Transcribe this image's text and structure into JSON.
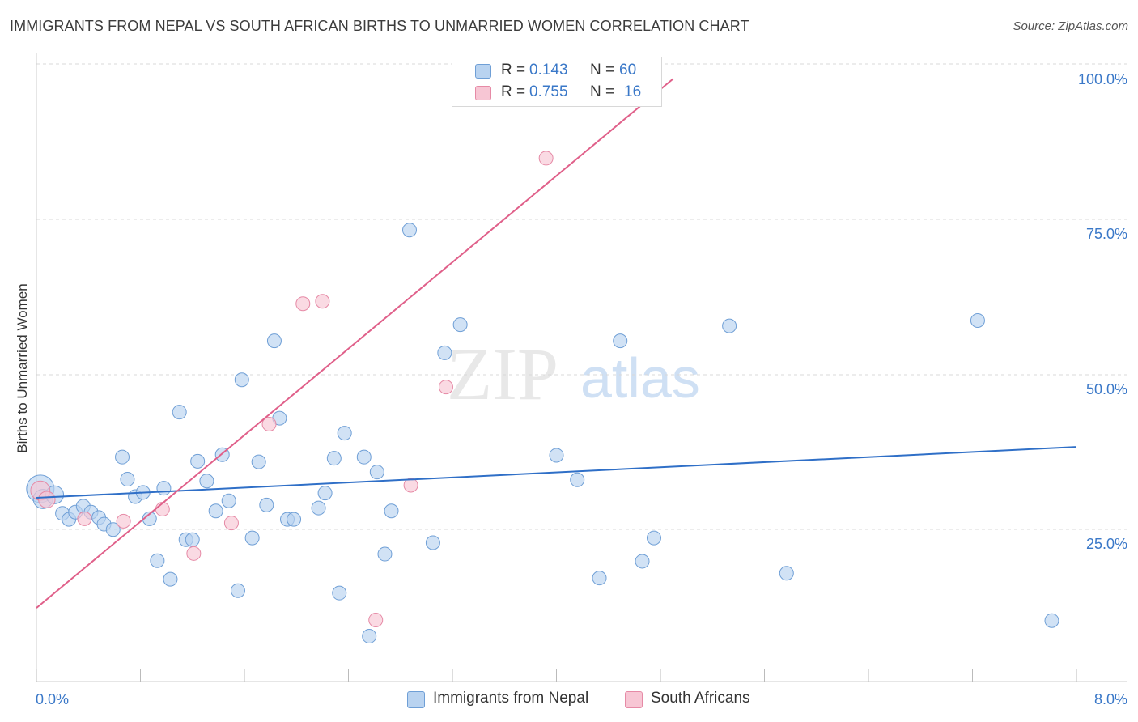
{
  "header": {
    "title": "IMMIGRANTS FROM NEPAL VS SOUTH AFRICAN BIRTHS TO UNMARRIED WOMEN CORRELATION CHART",
    "source": "Source: ZipAtlas.com"
  },
  "legend": {
    "rows": [
      {
        "r_label": "R =",
        "r_value": "0.143",
        "n_label": "N =",
        "n_value": "60"
      },
      {
        "r_label": "R =",
        "r_value": "0.755",
        "n_label": "N =",
        "n_value": "16"
      }
    ]
  },
  "watermark": {
    "part1": "ZIP",
    "part2": "atlas"
  },
  "colors": {
    "blue_fill": "#b9d3f0",
    "blue_stroke": "#6f9fd6",
    "blue_line": "#2f6fc7",
    "pink_fill": "#f7c6d4",
    "pink_stroke": "#e68aa6",
    "pink_line": "#e0608a",
    "axis_text": "#3a78c8",
    "grid": "#d9d9d9"
  },
  "chart_data": {
    "type": "scatter",
    "title": "IMMIGRANTS FROM NEPAL VS SOUTH AFRICAN BIRTHS TO UNMARRIED WOMEN CORRELATION CHART",
    "xlabel": "",
    "ylabel": "Births to Unmarried Women",
    "xlim": [
      0,
      8
    ],
    "ylim": [
      0,
      100
    ],
    "x_tick_labels": [
      "0.0%",
      "8.0%"
    ],
    "y_ticks": [
      25,
      50,
      75,
      100
    ],
    "y_tick_labels": [
      "25.0%",
      "50.0%",
      "75.0%",
      "100.0%"
    ],
    "grid": true,
    "legend_position": "top-center",
    "series": [
      {
        "name": "Immigrants from Nepal",
        "color": "#b9d3f0",
        "points": [
          [
            0.03,
            31.5,
            2
          ],
          [
            0.05,
            29.8,
            1.4
          ],
          [
            0.14,
            30.5,
            1.3
          ],
          [
            0.2,
            27.4,
            1
          ],
          [
            0.25,
            26.4,
            1
          ],
          [
            0.3,
            27.6,
            1
          ],
          [
            0.36,
            28.6,
            1
          ],
          [
            0.42,
            27.6,
            1
          ],
          [
            0.48,
            26.7,
            1
          ],
          [
            0.52,
            25.6,
            1
          ],
          [
            0.59,
            24.7,
            1
          ],
          [
            0.66,
            36.8,
            1
          ],
          [
            0.7,
            33.1,
            1
          ],
          [
            0.76,
            30.2,
            1
          ],
          [
            0.82,
            30.9,
            1
          ],
          [
            0.87,
            26.5,
            1
          ],
          [
            0.93,
            19.5,
            1
          ],
          [
            0.98,
            31.6,
            1
          ],
          [
            1.03,
            16.4,
            1
          ],
          [
            1.1,
            44.3,
            1
          ],
          [
            1.15,
            23.0,
            1
          ],
          [
            1.2,
            23.0,
            1
          ],
          [
            1.24,
            36.1,
            1
          ],
          [
            1.31,
            32.8,
            1
          ],
          [
            1.38,
            27.8,
            1
          ],
          [
            1.43,
            37.2,
            1
          ],
          [
            1.48,
            29.5,
            1
          ],
          [
            1.55,
            14.5,
            1
          ],
          [
            1.58,
            49.7,
            1
          ],
          [
            1.66,
            23.3,
            1
          ],
          [
            1.71,
            36.0,
            1
          ],
          [
            1.77,
            28.8,
            1
          ],
          [
            1.83,
            56.2,
            1
          ],
          [
            1.87,
            43.3,
            1
          ],
          [
            1.93,
            26.4,
            1
          ],
          [
            1.98,
            26.4,
            1
          ],
          [
            2.17,
            28.3,
            1
          ],
          [
            2.22,
            30.8,
            1
          ],
          [
            2.29,
            36.6,
            1
          ],
          [
            2.33,
            14.1,
            1
          ],
          [
            2.37,
            40.8,
            1
          ],
          [
            2.52,
            36.8,
            1
          ],
          [
            2.56,
            6.9,
            1
          ],
          [
            2.62,
            34.3,
            1
          ],
          [
            2.68,
            20.6,
            1
          ],
          [
            2.73,
            27.8,
            1
          ],
          [
            2.87,
            74.7,
            1
          ],
          [
            3.05,
            22.5,
            1
          ],
          [
            3.14,
            54.2,
            1
          ],
          [
            3.26,
            58.9,
            1
          ],
          [
            4.0,
            37.1,
            1
          ],
          [
            4.16,
            33.0,
            1
          ],
          [
            4.33,
            16.6,
            1
          ],
          [
            4.49,
            56.2,
            1
          ],
          [
            4.66,
            19.4,
            1
          ],
          [
            4.75,
            23.3,
            1
          ],
          [
            5.33,
            58.7,
            1
          ],
          [
            5.77,
            17.4,
            1
          ],
          [
            7.24,
            59.6,
            1
          ],
          [
            7.81,
            9.5,
            1
          ]
        ],
        "trend": {
          "x": [
            0,
            8
          ],
          "y": [
            30.0,
            38.5
          ]
        }
      },
      {
        "name": "South Africans",
        "color": "#f7c6d4",
        "points": [
          [
            0.03,
            31.2,
            1.4
          ],
          [
            0.08,
            29.7,
            1.2
          ],
          [
            0.37,
            26.5,
            1
          ],
          [
            0.67,
            26.1,
            1
          ],
          [
            0.97,
            28.1,
            1
          ],
          [
            1.21,
            20.7,
            1
          ],
          [
            1.5,
            25.8,
            1
          ],
          [
            1.79,
            42.3,
            1
          ],
          [
            2.05,
            62.4,
            1
          ],
          [
            2.2,
            62.8,
            1
          ],
          [
            2.61,
            9.6,
            1
          ],
          [
            2.88,
            32.1,
            1
          ],
          [
            3.15,
            48.5,
            1
          ],
          [
            3.81,
            100.0,
            1
          ],
          [
            3.88,
            100.0,
            1
          ],
          [
            3.92,
            86.7,
            1
          ]
        ],
        "trend": {
          "x": [
            0,
            4.9
          ],
          "y": [
            11.6,
            100.0
          ]
        }
      }
    ]
  }
}
